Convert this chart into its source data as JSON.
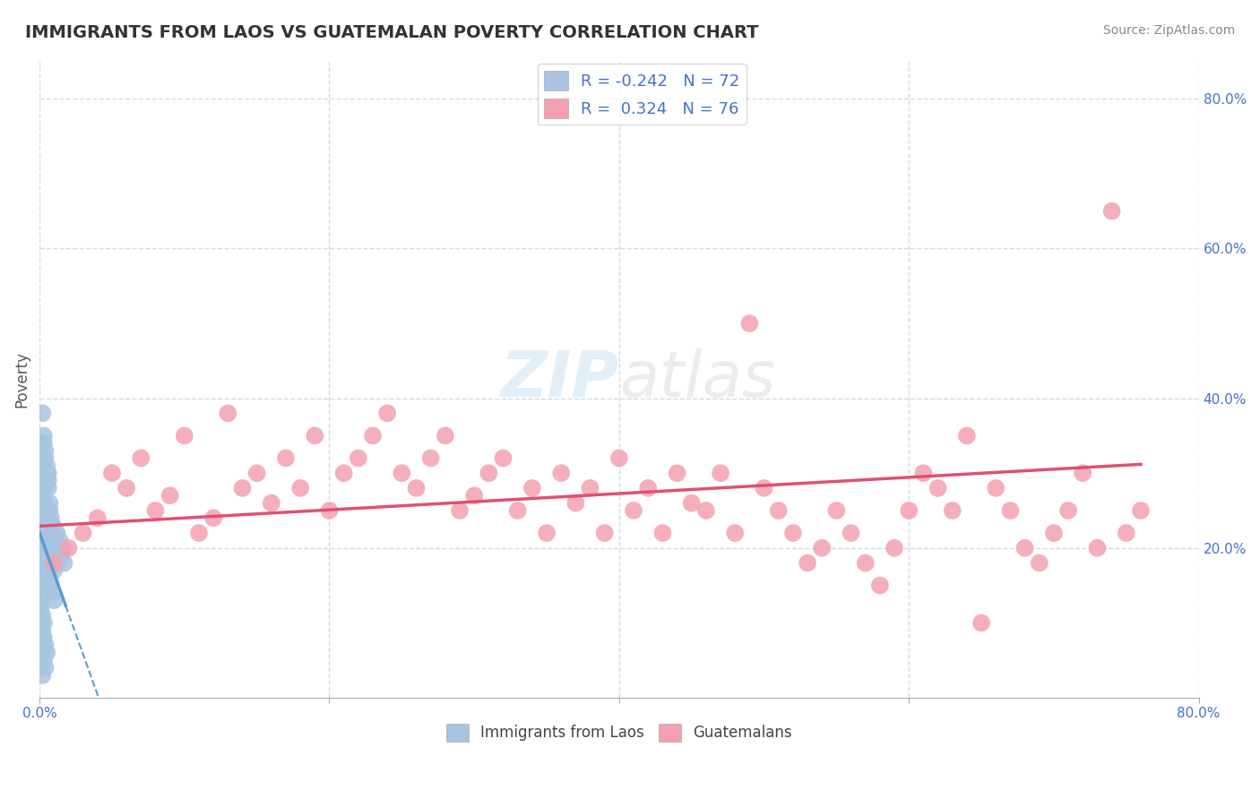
{
  "title": "IMMIGRANTS FROM LAOS VS GUATEMALAN POVERTY CORRELATION CHART",
  "source_text": "Source: ZipAtlas.com",
  "ylabel": "Poverty",
  "xlabel": "",
  "xlim": [
    0.0,
    0.8
  ],
  "ylim": [
    0.0,
    0.85
  ],
  "xticks": [
    0.0,
    0.2,
    0.4,
    0.6,
    0.8
  ],
  "xtick_labels": [
    "0.0%",
    "",
    "",
    "",
    "80.0%"
  ],
  "ytick_positions": [
    0.2,
    0.4,
    0.6,
    0.8
  ],
  "ytick_labels": [
    "20.0%",
    "40.0%",
    "60.0%",
    "80.0%"
  ],
  "blue_R": -0.242,
  "blue_N": 72,
  "pink_R": 0.324,
  "pink_N": 76,
  "blue_color": "#a8c4e0",
  "pink_color": "#f4a0b0",
  "blue_line_color": "#5b9bd5",
  "pink_line_color": "#e05070",
  "watermark": "ZIPatlas",
  "watermark_zip_color": "#a0c8e8",
  "watermark_atlas_color": "#c0c0c0",
  "legend_label_blue": "Immigrants from Laos",
  "legend_label_pink": "Guatemalans",
  "background_color": "#ffffff",
  "grid_color": "#d0d8e8",
  "blue_scatter_x": [
    0.002,
    0.003,
    0.004,
    0.005,
    0.006,
    0.007,
    0.008,
    0.009,
    0.01,
    0.011,
    0.012,
    0.013,
    0.014,
    0.015,
    0.016,
    0.017,
    0.002,
    0.003,
    0.004,
    0.005,
    0.006,
    0.007,
    0.008,
    0.009,
    0.001,
    0.002,
    0.003,
    0.004,
    0.005,
    0.003,
    0.004,
    0.005,
    0.006,
    0.007,
    0.008,
    0.002,
    0.003,
    0.004,
    0.005,
    0.006,
    0.002,
    0.003,
    0.004,
    0.001,
    0.002,
    0.003,
    0.001,
    0.002,
    0.003,
    0.004,
    0.005,
    0.006,
    0.007,
    0.008,
    0.009,
    0.01,
    0.001,
    0.002,
    0.003,
    0.004,
    0.005,
    0.001,
    0.002,
    0.003,
    0.001,
    0.002,
    0.001,
    0.002,
    0.001,
    0.002,
    0.003,
    0.004
  ],
  "blue_scatter_y": [
    0.22,
    0.24,
    0.2,
    0.18,
    0.25,
    0.21,
    0.19,
    0.23,
    0.17,
    0.2,
    0.22,
    0.18,
    0.21,
    0.19,
    0.2,
    0.18,
    0.28,
    0.26,
    0.24,
    0.22,
    0.3,
    0.25,
    0.23,
    0.21,
    0.32,
    0.3,
    0.28,
    0.26,
    0.24,
    0.34,
    0.32,
    0.3,
    0.28,
    0.26,
    0.24,
    0.38,
    0.35,
    0.33,
    0.31,
    0.29,
    0.15,
    0.16,
    0.17,
    0.14,
    0.13,
    0.15,
    0.18,
    0.2,
    0.22,
    0.21,
    0.19,
    0.17,
    0.16,
    0.15,
    0.14,
    0.13,
    0.1,
    0.09,
    0.08,
    0.07,
    0.06,
    0.12,
    0.11,
    0.1,
    0.05,
    0.06,
    0.07,
    0.08,
    0.04,
    0.03,
    0.05,
    0.04
  ],
  "pink_scatter_x": [
    0.01,
    0.02,
    0.03,
    0.04,
    0.05,
    0.06,
    0.07,
    0.08,
    0.09,
    0.1,
    0.11,
    0.12,
    0.13,
    0.14,
    0.15,
    0.16,
    0.17,
    0.18,
    0.19,
    0.2,
    0.21,
    0.22,
    0.23,
    0.24,
    0.25,
    0.26,
    0.27,
    0.28,
    0.29,
    0.3,
    0.31,
    0.32,
    0.33,
    0.34,
    0.35,
    0.36,
    0.37,
    0.38,
    0.39,
    0.4,
    0.41,
    0.42,
    0.43,
    0.44,
    0.45,
    0.46,
    0.47,
    0.48,
    0.49,
    0.5,
    0.51,
    0.52,
    0.53,
    0.54,
    0.55,
    0.56,
    0.57,
    0.58,
    0.59,
    0.6,
    0.61,
    0.62,
    0.63,
    0.64,
    0.65,
    0.66,
    0.67,
    0.68,
    0.69,
    0.7,
    0.71,
    0.72,
    0.73,
    0.74,
    0.75,
    0.76
  ],
  "pink_scatter_y": [
    0.18,
    0.2,
    0.22,
    0.24,
    0.3,
    0.28,
    0.32,
    0.25,
    0.27,
    0.35,
    0.22,
    0.24,
    0.38,
    0.28,
    0.3,
    0.26,
    0.32,
    0.28,
    0.35,
    0.25,
    0.3,
    0.32,
    0.35,
    0.38,
    0.3,
    0.28,
    0.32,
    0.35,
    0.25,
    0.27,
    0.3,
    0.32,
    0.25,
    0.28,
    0.22,
    0.3,
    0.26,
    0.28,
    0.22,
    0.32,
    0.25,
    0.28,
    0.22,
    0.3,
    0.26,
    0.25,
    0.3,
    0.22,
    0.5,
    0.28,
    0.25,
    0.22,
    0.18,
    0.2,
    0.25,
    0.22,
    0.18,
    0.15,
    0.2,
    0.25,
    0.3,
    0.28,
    0.25,
    0.35,
    0.1,
    0.28,
    0.25,
    0.2,
    0.18,
    0.22,
    0.25,
    0.3,
    0.2,
    0.65,
    0.22,
    0.25
  ]
}
